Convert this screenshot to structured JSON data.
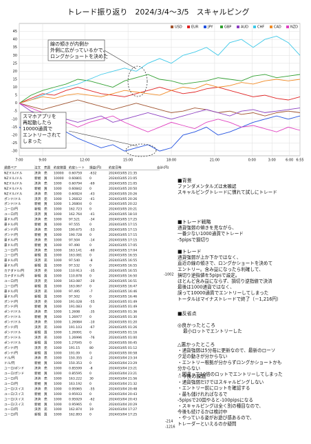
{
  "title": "トレード振り返り　2024/3/4～3/5　スキャルピング",
  "chart_data": {
    "type": "line",
    "x": [
      0,
      1,
      2,
      3,
      4,
      5,
      6,
      7,
      8,
      9,
      10,
      11,
      12,
      13,
      14,
      15,
      16,
      17,
      18,
      19,
      20,
      21,
      22,
      23,
      24
    ],
    "xlim": [
      0,
      24
    ],
    "xticks": [
      {
        "value": 0,
        "label": "7:00"
      },
      {
        "value": 2,
        "label": "9:00"
      },
      {
        "value": 5.6,
        "label": "12:00"
      },
      {
        "value": 9.3,
        "label": "15:00"
      },
      {
        "value": 13,
        "label": "18:00"
      },
      {
        "value": 16.7,
        "label": "21:00"
      },
      {
        "value": 19.9,
        "label": "0:00"
      },
      {
        "value": 21.6,
        "label": "3:00"
      },
      {
        "value": 23.1,
        "label": "6:00"
      },
      {
        "value": 24,
        "label": "6:55"
      }
    ],
    "ylim": [
      -33,
      50
    ],
    "yticks": [
      45,
      40,
      35,
      30,
      25,
      20,
      15,
      10,
      5,
      0,
      -5,
      -10,
      -15,
      -20,
      -25,
      -30
    ],
    "grid": true,
    "legend": "top-right",
    "series": [
      {
        "name": "USD",
        "color": "#a0522d",
        "values": [
          0,
          -2,
          -4,
          -2,
          0,
          2,
          0,
          -2,
          -4,
          -2,
          0,
          -2,
          -4,
          -6,
          -5,
          -3,
          -4,
          -6,
          -5,
          -7,
          -6,
          -8,
          -6,
          -5,
          -6
        ]
      },
      {
        "name": "EUR",
        "color": "#e02020",
        "values": [
          0,
          3,
          6,
          5,
          8,
          10,
          8,
          6,
          5,
          4,
          6,
          8,
          10,
          8,
          6,
          7,
          9,
          10,
          8,
          6,
          4,
          5,
          3,
          2,
          4
        ]
      },
      {
        "name": "JPY",
        "color": "#2050e0",
        "values": [
          -15,
          -20,
          -25,
          -20,
          -18,
          -22,
          -25,
          -28,
          -26,
          -30,
          -28,
          -26,
          -30,
          -28,
          -20,
          -18,
          -15,
          -20,
          -18,
          -15,
          -12,
          -10,
          -8,
          -10,
          -8
        ]
      },
      {
        "name": "GBP",
        "color": "#30a030",
        "values": [
          0,
          5,
          8,
          10,
          12,
          15,
          14,
          12,
          10,
          14,
          16,
          18,
          15,
          14,
          12,
          13,
          14,
          16,
          15,
          14,
          17,
          18,
          16,
          17,
          18
        ]
      },
      {
        "name": "AUD",
        "color": "#8a3cc0",
        "values": [
          0,
          -5,
          -8,
          -6,
          -10,
          -12,
          -10,
          -8,
          -12,
          -10,
          -8,
          -6,
          -8,
          -10,
          -8,
          -6,
          -4,
          -6,
          -8,
          -5,
          -4,
          -6,
          -5,
          -4,
          -3
        ]
      },
      {
        "name": "CHF",
        "color": "#3cc8e8",
        "values": [
          0,
          2,
          5,
          8,
          10,
          12,
          15,
          18,
          20,
          22,
          20,
          25,
          28,
          25,
          30,
          32,
          35,
          30,
          38,
          40,
          35,
          40,
          42,
          38,
          30
        ]
      },
      {
        "name": "CAD",
        "color": "#f08a24",
        "values": [
          0,
          2,
          4,
          3,
          5,
          6,
          5,
          4,
          6,
          8,
          7,
          6,
          5,
          8,
          10,
          9,
          12,
          10,
          11,
          13,
          12,
          14,
          15,
          14,
          15
        ]
      },
      {
        "name": "NZD",
        "color": "#e040c0",
        "values": [
          0,
          -3,
          -6,
          -10,
          -12,
          -15,
          -12,
          -10,
          -8,
          -12,
          -15,
          -18,
          -15,
          -12,
          -14,
          -16,
          -12,
          -10,
          -12,
          -15,
          -14,
          -16,
          -18,
          -15,
          -17
        ]
      }
    ],
    "annotations": [
      [
        "線の傾きが内側か",
        "外側に広がっているかで、",
        "ロングかショートを決めた"
      ],
      [
        "スマホアプリを",
        "再起動したら",
        "10000通貨で",
        "エントリーされて",
        "しまった"
      ]
    ]
  },
  "table": {
    "header": [
      "通貨ペア",
      "注文",
      "売買",
      "約定数量",
      "約定レート",
      "損益(円)",
      "約定日時",
      "合計(円)"
    ],
    "rows": [
      [
        "NZドル/ドル",
        "決済",
        "売",
        "10000",
        "0.60759",
        "-632",
        "2024/03/05 21:35"
      ],
      [
        "NZドル/ドル",
        "新規",
        "買",
        "10000",
        "0.60801",
        "0",
        "2024/03/05 21:05"
      ],
      [
        "NZドル/ドル",
        "決済",
        "売",
        "1000",
        "0.60794",
        "-69",
        "2024/03/05 21:05"
      ],
      [
        "NZドル/ドル",
        "新規",
        "買",
        "1000",
        "0.60842",
        "0",
        "2024/03/05 20:50"
      ],
      [
        "NZドル/ドル",
        "決済",
        "売",
        "1000",
        "0.60824",
        "-43",
        "2024/03/05 20:26"
      ],
      [
        "ポンド/ドル",
        "決済",
        "売",
        "1000",
        "1.26832",
        "-41",
        "2024/03/05 20:26"
      ],
      [
        "ポンド/ドル",
        "新規",
        "買",
        "1000",
        "1.26804",
        "0",
        "2024/03/05 20:22"
      ],
      [
        "ユーロ/円",
        "新規",
        "売",
        "1000",
        "162.723",
        "0",
        "2024/03/05 20:21"
      ],
      [
        "ユーロ/円",
        "決済",
        "買",
        "1000",
        "162.764",
        "-41",
        "2024/03/05 18:10"
      ],
      [
        "豪ドル/円",
        "決済",
        "売",
        "1000",
        "97.521",
        "-34",
        "2024/03/05 17:25"
      ],
      [
        "豪ドル/円",
        "新規",
        "買",
        "1000",
        "97.555",
        "0",
        "2024/03/05 17:15"
      ],
      [
        "ポンド/円",
        "決済",
        "売",
        "1000",
        "190.675",
        "-53",
        "2024/03/05 17:15"
      ],
      [
        "ポンド/円",
        "新規",
        "買",
        "1000",
        "190.728",
        "0",
        "2024/03/05 17:15"
      ],
      [
        "豪ドル/円",
        "決済",
        "売",
        "1000",
        "97.504",
        "-14",
        "2024/03/05 17:15"
      ],
      [
        "豪ドル/円",
        "新規",
        "買",
        "1000",
        "97.490",
        "0",
        "2024/03/05 17:05"
      ],
      [
        "ユーロ/円",
        "決済",
        "売",
        "1000",
        "163.141",
        "-60",
        "2024/03/05 17:04"
      ],
      [
        "ユーロ/円",
        "新規",
        "買",
        "1000",
        "163.081",
        "0",
        "2024/03/05 16:55"
      ],
      [
        "豪ドル/円",
        "決済",
        "売",
        "1000",
        "97.540",
        "-8",
        "2024/03/05 16:55"
      ],
      [
        "豪ドル/円",
        "新規",
        "買",
        "1000",
        "97.532",
        "0",
        "2024/03/05 16:55"
      ],
      [
        "カナダドル/円",
        "決済",
        "売",
        "1000",
        "110.913",
        "-35",
        "2024/03/05 16:55"
      ],
      [
        "カナダドル/円",
        "新規",
        "買",
        "1000",
        "110.878",
        "0",
        "2024/03/05 16:50"
      ],
      [
        "ユーロ/円",
        "決済",
        "売",
        "1000",
        "163.087",
        "-20",
        "2024/03/05 16:51"
      ],
      [
        "ユーロ/円",
        "新規",
        "買",
        "1000",
        "163.067",
        "0",
        "2024/03/05 16:47"
      ],
      [
        "豪ドル/円",
        "決済",
        "売",
        "1000",
        "97.495",
        "-7",
        "2024/03/05 16:46"
      ],
      [
        "豪ドル/円",
        "新規",
        "買",
        "1000",
        "97.502",
        "0",
        "2024/03/05 16:46"
      ],
      [
        "ポンド/円",
        "決済",
        "売",
        "1000",
        "191.028",
        "-55",
        "2024/03/05 01:49"
      ],
      [
        "ポンド/円",
        "新規",
        "買",
        "1000",
        "191.083",
        "0",
        "2024/03/05 01:49"
      ],
      [
        "ポンド/ドル",
        "決済",
        "売",
        "1000",
        "1.2698",
        "-35",
        "2024/03/05 01:36"
      ],
      [
        "ポンド/ドル",
        "新規",
        "買",
        "1000",
        "1.26977",
        "0",
        "2024/03/05 01:30"
      ],
      [
        "ポンド/ドル",
        "決済",
        "売",
        "1000",
        "1.26984",
        "-10",
        "2024/03/05 01:20"
      ],
      [
        "ポンド/円",
        "決済",
        "売",
        "1000",
        "191.103",
        "-67",
        "2024/03/05 01:26"
      ],
      [
        "ポンド/ドル",
        "新規",
        "買",
        "1000",
        "1.26991",
        "0",
        "2024/03/05 01:16"
      ],
      [
        "ポンド/ドル",
        "決済",
        "売",
        "1000",
        "1.26996",
        "-76",
        "2024/03/05 01:00"
      ],
      [
        "ポンド/ドル",
        "新規",
        "買",
        "1000",
        "1.27045",
        "0",
        "2024/03/05 00:45"
      ],
      [
        "ポンド/円",
        "決済",
        "売",
        "1000",
        "191.15",
        "80",
        "2024/03/05 01:12"
      ],
      [
        "ポンド/円",
        "新規",
        "買",
        "1000",
        "191.09",
        "0",
        "2024/03/05 00:58"
      ],
      [
        "ドル/円",
        "決済",
        "売",
        "1000",
        "150.355",
        "-2",
        "2024/03/04 23:34"
      ],
      [
        "ドル/円",
        "新規",
        "買",
        "1000",
        "150.353",
        "0",
        "2024/03/04 23:29"
      ],
      [
        "ユーロ/ポンド",
        "決済",
        "売",
        "1000",
        "0.85599",
        "-8",
        "2024/03/04 23:21"
      ],
      [
        "ユーロ/ポンド",
        "新規",
        "買",
        "1000",
        "0.85595",
        "0",
        "2024/03/04 23:21"
      ],
      [
        "ユーロ/円",
        "決済",
        "売",
        "1000",
        "163.222",
        "30",
        "2024/03/04 21:56"
      ],
      [
        "ユーロ/円",
        "新規",
        "買",
        "1000",
        "163.192",
        "0",
        "2024/03/04 21:32"
      ],
      [
        "ユーロ/スイス",
        "決済",
        "売",
        "1000",
        "0.95965",
        "-55",
        "2024/03/04 20:48"
      ],
      [
        "ユーロ/スイス",
        "新規",
        "買",
        "1000",
        "0.95933",
        "0",
        "2024/03/04 20:43"
      ],
      [
        "ユーロ/スイス",
        "決済",
        "売",
        "1000",
        "0.95929",
        "-62",
        "2024/03/04 20:43"
      ],
      [
        "ユーロ/スイス",
        "新規",
        "買",
        "1000",
        "0.95965",
        "0",
        "2024/03/04 20:29"
      ],
      [
        "ユーロ/円",
        "決済",
        "売",
        "1000",
        "162.874",
        "19",
        "2024/03/04 17:27"
      ],
      [
        "ユーロ/円",
        "新規",
        "買",
        "1000",
        "162.893",
        "0",
        "2024/03/04 17:25"
      ]
    ],
    "subtotal": "-1002",
    "totals": [
      "-214",
      "-1216"
    ]
  },
  "notes": [
    {
      "heading": "■背景",
      "lines": [
        "ファンダメンタルズは未確認",
        "スキャルピングトレードに慣れて試しにトレード"
      ]
    },
    {
      "heading": "■トレード戦略",
      "lines": [
        "通貨強弱の傾きを見ながら、",
        "一番少ない1000通貨でトレード",
        "-5pipsで損切り"
      ]
    },
    {
      "heading": "■トレード",
      "lines": [
        "通貨強弱が上か下かではなく、",
        "直近の線の傾きで、ロングかショートを決めて",
        "エントリー。含み益になったら利確して、",
        "損切り逆指値を5pipsで設定。",
        "ほとんど含み益にならず、損切り逆指値で決済",
        "最後は1000通貨ではなく、",
        "誤って10000通貨でエントリーしてしまった",
        "トータルはマイナストレードで終了（－1,216円）"
      ]
    },
    {
      "heading": "■反省点",
      "lines": []
    },
    {
      "heading": "◎良かったところ",
      "lines": [
        "最小ロットでエントリーした"
      ]
    },
    {
      "heading": "△悪かったところ",
      "lines": [
        "・通貨強弱は5分毎に更新なので、最新のローソ",
        "ク足の動きが分からない",
        "・エントリー根拠が分からずロングかショートかも",
        "分からない",
        "・間違って10倍のロットでエントリーしてしまった"
      ]
    },
    {
      "heading": "☆今後の課題",
      "lines": [
        "・通貨強弱だけではスキャルピングしない",
        "・エントリー前にロットを確認する",
        "・最も儲けれればなるで",
        "-5pipsで20回やると-100pipsになる",
        "・スキャルピングは全く別の種目なので、",
        "今後も続けるかは検討中",
        "・やっている姿がお遊び感あるので、",
        "トレーダーといえるのか疑問"
      ]
    }
  ]
}
